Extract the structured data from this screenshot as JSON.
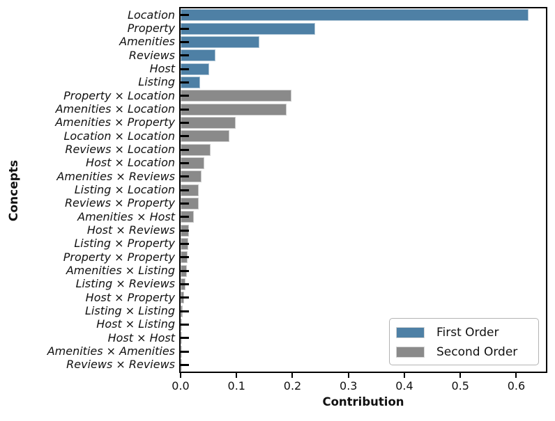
{
  "chart_data": {
    "type": "bar",
    "orientation": "horizontal",
    "xlabel": "Contribution",
    "ylabel": "Concepts",
    "xlim": [
      0,
      0.653
    ],
    "grid": false,
    "legend": {
      "position": "lower right",
      "entries": [
        {
          "key": "first",
          "label": "First Order",
          "color": "#4e80a5"
        },
        {
          "key": "second",
          "label": "Second Order",
          "color": "#8a8a8a"
        }
      ]
    },
    "xticks": [
      {
        "value": 0.0,
        "label": "0.0"
      },
      {
        "value": 0.1,
        "label": "0.1"
      },
      {
        "value": 0.2,
        "label": "0.2"
      },
      {
        "value": 0.3,
        "label": "0.3"
      },
      {
        "value": 0.4,
        "label": "0.4"
      },
      {
        "value": 0.5,
        "label": "0.5"
      },
      {
        "value": 0.6,
        "label": "0.6"
      }
    ],
    "bars": [
      {
        "label": "Location",
        "value": 0.622,
        "order": "first"
      },
      {
        "label": "Property",
        "value": 0.241,
        "order": "first"
      },
      {
        "label": "Amenities",
        "value": 0.141,
        "order": "first"
      },
      {
        "label": "Reviews",
        "value": 0.062,
        "order": "first"
      },
      {
        "label": "Host",
        "value": 0.051,
        "order": "first"
      },
      {
        "label": "Listing",
        "value": 0.035,
        "order": "first"
      },
      {
        "label": "Property × Location",
        "value": 0.198,
        "order": "second"
      },
      {
        "label": "Amenities × Location",
        "value": 0.19,
        "order": "second"
      },
      {
        "label": "Amenities × Property",
        "value": 0.099,
        "order": "second"
      },
      {
        "label": "Location × Location",
        "value": 0.087,
        "order": "second"
      },
      {
        "label": "Reviews × Location",
        "value": 0.053,
        "order": "second"
      },
      {
        "label": "Host × Location",
        "value": 0.042,
        "order": "second"
      },
      {
        "label": "Amenities × Reviews",
        "value": 0.037,
        "order": "second"
      },
      {
        "label": "Listing × Location",
        "value": 0.033,
        "order": "second"
      },
      {
        "label": "Reviews × Property",
        "value": 0.032,
        "order": "second"
      },
      {
        "label": "Amenities × Host",
        "value": 0.024,
        "order": "second"
      },
      {
        "label": "Host × Reviews",
        "value": 0.015,
        "order": "second"
      },
      {
        "label": "Listing × Property",
        "value": 0.014,
        "order": "second"
      },
      {
        "label": "Property × Property",
        "value": 0.012,
        "order": "second"
      },
      {
        "label": "Amenities × Listing",
        "value": 0.011,
        "order": "second"
      },
      {
        "label": "Listing × Reviews",
        "value": 0.009,
        "order": "second"
      },
      {
        "label": "Host × Property",
        "value": 0.006,
        "order": "second"
      },
      {
        "label": "Listing × Listing",
        "value": 0.004,
        "order": "second"
      },
      {
        "label": "Host × Listing",
        "value": 0.0025,
        "order": "second"
      },
      {
        "label": "Host × Host",
        "value": 0.0012,
        "order": "second"
      },
      {
        "label": "Amenities × Amenities",
        "value": 0.0008,
        "order": "second"
      },
      {
        "label": "Reviews × Reviews",
        "value": 0.0005,
        "order": "second"
      }
    ]
  }
}
